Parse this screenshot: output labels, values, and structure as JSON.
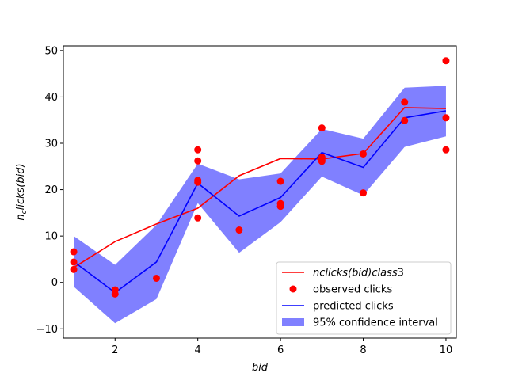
{
  "chart_data": {
    "type": "line",
    "xlabel": "bid",
    "ylabel": "n_c licks(bid)",
    "xlim": [
      0.75,
      10.25
    ],
    "ylim": [
      -12,
      51
    ],
    "x_ticks": [
      2,
      4,
      6,
      8,
      10
    ],
    "y_ticks": [
      -10,
      0,
      10,
      20,
      30,
      40,
      50
    ],
    "grid": false,
    "legend_position": "lower-right",
    "colors": {
      "class_line": "#ff0000",
      "observed": "#ff0000",
      "predicted": "#0000ff",
      "confidence": "#8080ff"
    },
    "series": [
      {
        "name": "nclicks(bid)class3",
        "kind": "line",
        "x": [
          1,
          2,
          3,
          4,
          5,
          6,
          7,
          8,
          9,
          10
        ],
        "y": [
          3.2,
          8.8,
          12.6,
          16.0,
          23.0,
          26.7,
          26.6,
          27.8,
          37.7,
          37.5
        ]
      },
      {
        "name": "observed clicks",
        "kind": "scatter",
        "points": [
          [
            1,
            6.6
          ],
          [
            1,
            4.4
          ],
          [
            1,
            2.8
          ],
          [
            2,
            -1.6
          ],
          [
            2,
            -2.5
          ],
          [
            3,
            0.9
          ],
          [
            4,
            28.6
          ],
          [
            4,
            26.2
          ],
          [
            4,
            22.0
          ],
          [
            4,
            21.6
          ],
          [
            4,
            13.9
          ],
          [
            5,
            11.3
          ],
          [
            6,
            21.8
          ],
          [
            6,
            17.0
          ],
          [
            6,
            16.4
          ],
          [
            7,
            33.3
          ],
          [
            7,
            27.0
          ],
          [
            7,
            26.4
          ],
          [
            7,
            26.1
          ],
          [
            8,
            27.7
          ],
          [
            8,
            19.3
          ],
          [
            9,
            38.9
          ],
          [
            9,
            34.9
          ],
          [
            10,
            47.8
          ],
          [
            10,
            35.5
          ],
          [
            10,
            28.6
          ]
        ]
      },
      {
        "name": "predicted clicks",
        "kind": "line",
        "x": [
          1,
          2,
          3,
          4,
          5,
          6,
          7,
          8,
          9,
          10
        ],
        "y": [
          4.5,
          -2.2,
          4.4,
          21.4,
          14.3,
          18.3,
          28.0,
          24.8,
          35.5,
          37.0
        ]
      },
      {
        "name": "95% confidence interval",
        "kind": "band",
        "x": [
          1,
          2,
          3,
          4,
          5,
          6,
          7,
          8,
          9,
          10
        ],
        "lower": [
          -0.9,
          -8.8,
          -3.6,
          17.1,
          6.4,
          13.0,
          22.8,
          18.8,
          29.2,
          31.5
        ],
        "upper": [
          10.0,
          3.8,
          12.4,
          25.6,
          22.2,
          23.5,
          33.1,
          31.0,
          42.0,
          42.4
        ]
      }
    ],
    "legend": {
      "entries": [
        {
          "label": "nclicks(bid)class3",
          "italic_base": "nclicks(bid)class",
          "suffix": "3",
          "symbol": "line",
          "color": "#ff0000"
        },
        {
          "label": "observed clicks",
          "symbol": "marker",
          "color": "#ff0000"
        },
        {
          "label": "predicted clicks",
          "symbol": "line",
          "color": "#0000ff"
        },
        {
          "label": "95% confidence interval",
          "symbol": "patch",
          "color": "#8080ff"
        }
      ]
    }
  }
}
